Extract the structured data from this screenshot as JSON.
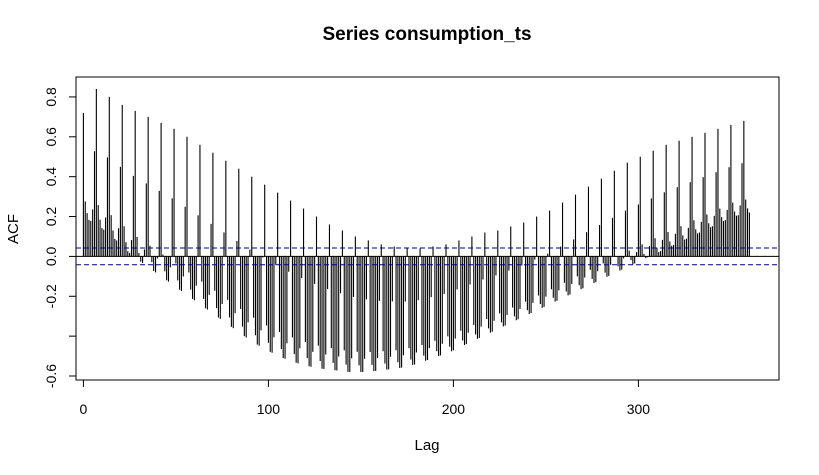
{
  "chart_data": {
    "type": "bar",
    "title": "Series  consumption_ts",
    "xlabel": "Lag",
    "ylabel": "ACF",
    "xlim": [
      -4,
      376
    ],
    "ylim": [
      -0.62,
      0.9
    ],
    "xticks": [
      0,
      100,
      200,
      300
    ],
    "xtick_labels": [
      "0",
      "100",
      "200",
      "300"
    ],
    "yticks": [
      -0.6,
      -0.4,
      -0.2,
      0.0,
      0.2,
      0.4,
      0.6,
      0.8
    ],
    "ytick_labels": [
      "-0.6",
      "",
      "-0.2",
      "0.0",
      "0.2",
      "0.4",
      "0.6",
      "0.8"
    ],
    "confidence_bound": 0.042,
    "max_lag": 360,
    "season_length": 7,
    "envelope_lags": [
      0,
      7,
      14,
      21,
      28,
      35,
      42,
      49,
      56,
      63,
      70,
      77,
      84,
      91,
      98,
      105,
      112,
      119,
      126,
      133,
      140,
      147,
      154,
      161,
      168,
      175,
      182,
      189,
      196,
      203,
      210,
      217,
      224,
      231,
      238,
      245,
      252,
      259,
      266,
      273,
      280,
      287,
      294,
      301,
      308,
      315,
      322,
      329,
      336,
      343,
      350,
      357,
      360
    ],
    "envelope_values": [
      0.72,
      0.84,
      0.8,
      0.76,
      0.73,
      0.7,
      0.67,
      0.64,
      0.6,
      0.56,
      0.52,
      0.48,
      0.44,
      0.4,
      0.36,
      0.32,
      0.28,
      0.24,
      0.2,
      0.16,
      0.13,
      0.1,
      0.08,
      0.06,
      0.05,
      0.04,
      0.04,
      0.05,
      0.06,
      0.08,
      0.1,
      0.12,
      0.13,
      0.15,
      0.17,
      0.2,
      0.23,
      0.27,
      0.31,
      0.35,
      0.39,
      0.43,
      0.47,
      0.5,
      0.53,
      0.56,
      0.58,
      0.6,
      0.62,
      0.64,
      0.66,
      0.68,
      0.68
    ],
    "trough_values": [
      0.2,
      0.15,
      0.08,
      0.0,
      -0.06,
      -0.12,
      -0.18,
      -0.24,
      -0.3,
      -0.36,
      -0.42,
      -0.47,
      -0.51,
      -0.54,
      -0.56,
      -0.57,
      -0.58,
      -0.58,
      -0.57,
      -0.56,
      -0.54,
      -0.51,
      -0.48,
      -0.44,
      -0.4,
      -0.36,
      -0.32,
      -0.28,
      -0.24,
      -0.2,
      -0.16,
      -0.12,
      -0.08,
      -0.04,
      0.0,
      0.04,
      0.08,
      0.12,
      0.16,
      0.2,
      0.22
    ],
    "trough_lags": [
      0,
      9,
      18,
      27,
      36,
      45,
      54,
      63,
      72,
      81,
      90,
      99,
      108,
      117,
      126,
      135,
      144,
      153,
      162,
      171,
      180,
      189,
      198,
      207,
      216,
      225,
      234,
      243,
      252,
      261,
      270,
      279,
      288,
      297,
      306,
      315,
      324,
      333,
      342,
      351,
      360
    ],
    "colors": {
      "bars": "#000000",
      "ci_lines": "#00008B",
      "axis": "#000000"
    }
  }
}
